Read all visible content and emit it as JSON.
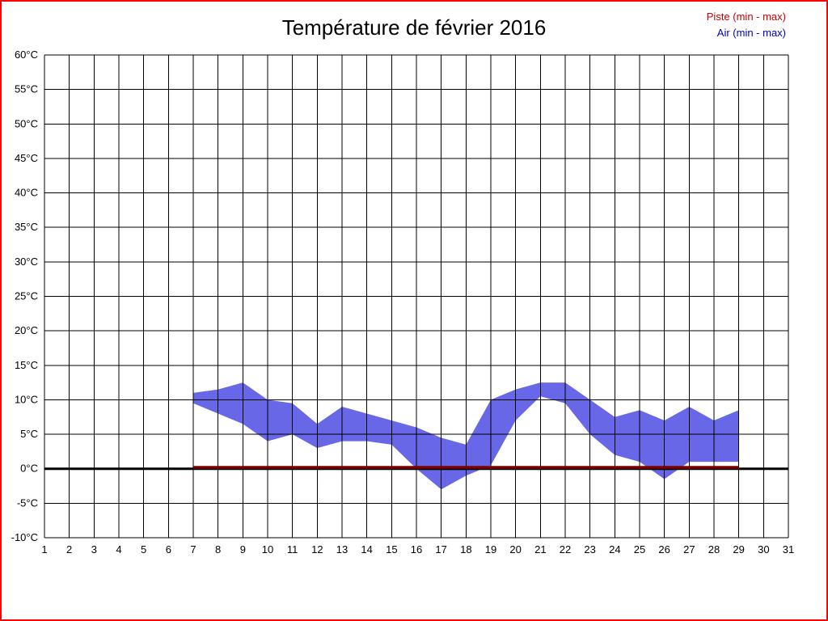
{
  "title": "Température de février 2016",
  "legend": {
    "piste": "Piste (min - max)",
    "air": "Air (min - max)"
  },
  "colors": {
    "frame_border": "#ff0000",
    "legend_piste": "#cc0000",
    "legend_air": "#0000cc",
    "grid": "#000000",
    "air_band": "#6767e8",
    "piste_band": "#7a0000",
    "zero_line": "#000000"
  },
  "chart_data": {
    "type": "area",
    "title": "Température de février 2016",
    "xlabel": "",
    "ylabel": "",
    "xlim": [
      1,
      31
    ],
    "ylim": [
      -10,
      60
    ],
    "grid": true,
    "legend_position": "top-right",
    "x_tick_values": [
      1,
      2,
      3,
      4,
      5,
      6,
      7,
      8,
      9,
      10,
      11,
      12,
      13,
      14,
      15,
      16,
      17,
      18,
      19,
      20,
      21,
      22,
      23,
      24,
      25,
      26,
      27,
      28,
      29,
      30,
      31
    ],
    "x_tick_labels": [
      "1",
      "2",
      "3",
      "4",
      "5",
      "6",
      "7",
      "8",
      "9",
      "10",
      "11",
      "12",
      "13",
      "14",
      "15",
      "16",
      "17",
      "18",
      "19",
      "20",
      "21",
      "22",
      "23",
      "24",
      "25",
      "26",
      "27",
      "28",
      "29",
      "30",
      "31"
    ],
    "y_tick_values": [
      60,
      55,
      50,
      45,
      40,
      35,
      30,
      25,
      20,
      15,
      10,
      5,
      0,
      -5,
      -10
    ],
    "y_tick_labels": [
      "60°C",
      "55°C",
      "50°C",
      "45°C",
      "40°C",
      "35°C",
      "30°C",
      "25°C",
      "20°C",
      "15°C",
      "10°C",
      "5°C",
      "0°C",
      "-5°C",
      "-10°C"
    ],
    "zero_line": {
      "value": 0,
      "color": "#000000",
      "width": 3
    },
    "series": [
      {
        "id": "air",
        "name": "Air (min - max)",
        "band_type": "min-max",
        "layer": "below",
        "color": "#6767e8",
        "days": [
          7,
          8,
          9,
          10,
          11,
          12,
          13,
          14,
          15,
          16,
          17,
          18,
          19,
          20,
          21,
          22,
          23,
          24,
          25,
          26,
          27,
          28,
          29
        ],
        "min": [
          9.5,
          8,
          6.5,
          4,
          5,
          3,
          4,
          4,
          3.5,
          0,
          -3,
          -1,
          0.5,
          7,
          10.5,
          9.5,
          5,
          2,
          1,
          -1.5,
          1,
          1,
          1
        ],
        "max": [
          11,
          11.5,
          12.5,
          10,
          9.5,
          6.5,
          9,
          8,
          7,
          6,
          4.5,
          3.5,
          10,
          11.5,
          12.5,
          12.5,
          10,
          7.5,
          8.5,
          7,
          9,
          7,
          8.5
        ]
      },
      {
        "id": "piste",
        "name": "Piste (min - max)",
        "band_type": "min-max",
        "layer": "above",
        "color": "#7a0000",
        "days": [
          7,
          8,
          9,
          10,
          11,
          12,
          13,
          14,
          15,
          16,
          17,
          18,
          19,
          20,
          21,
          22,
          23,
          24,
          25,
          26,
          27,
          28,
          29
        ],
        "min": [
          0,
          0,
          0,
          0,
          0,
          0,
          0,
          0,
          0,
          0,
          0,
          0,
          0,
          0,
          0,
          0,
          0,
          0,
          0,
          0,
          0,
          0,
          0
        ],
        "max": [
          0.4,
          0.4,
          0.4,
          0.4,
          0.4,
          0.4,
          0.4,
          0.4,
          0.4,
          0.4,
          0.4,
          0.4,
          0.4,
          0.4,
          0.4,
          0.4,
          0.4,
          0.4,
          0.4,
          0.4,
          0.4,
          0.4,
          0.4
        ]
      }
    ]
  }
}
